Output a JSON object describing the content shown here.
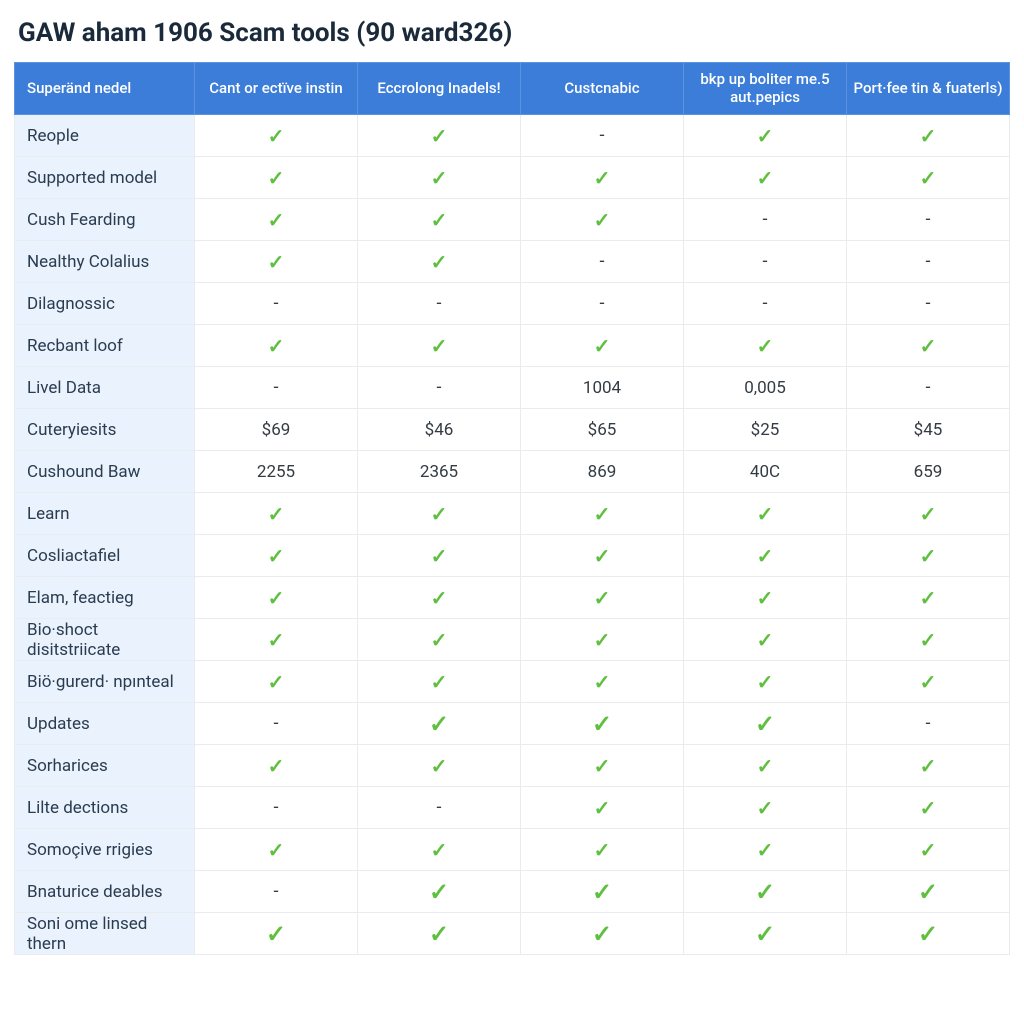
{
  "title": "GAW aham 1906 Scam tools (90 ward326)",
  "table": {
    "columns": [
      "Superänd nedel",
      "Cant or ectïve instin",
      "Eccrolong Inadels!",
      "Custcnabic",
      "bkp up boliter me.5 aut.pepics",
      "Port·fee tin & fuaterls)"
    ],
    "rows": [
      {
        "label": "Reople",
        "cells": [
          "check",
          "check",
          "dash",
          "check",
          "check"
        ]
      },
      {
        "label": "Supported model",
        "cells": [
          "check",
          "check",
          "check",
          "check",
          "check"
        ]
      },
      {
        "label": "Cush Fearding",
        "cells": [
          "check",
          "check",
          "check",
          "dash",
          "dash"
        ]
      },
      {
        "label": "Nealthy Colalius",
        "cells": [
          "check",
          "check",
          "dash",
          "dash",
          "dash"
        ]
      },
      {
        "label": "Dilagnossic",
        "cells": [
          "dash",
          "dash",
          "dash",
          "dash",
          "dash"
        ]
      },
      {
        "label": "Recbant loof",
        "cells": [
          "check",
          "check",
          "check",
          "check",
          "check"
        ]
      },
      {
        "label": "Livel Data",
        "cells": [
          "dash",
          "dash",
          "1004",
          "0,005",
          "dash"
        ]
      },
      {
        "label": "Cuteryiesits",
        "cells": [
          "$69",
          "$46",
          "$65",
          "$25",
          "$45"
        ]
      },
      {
        "label": "Cushound Baw",
        "cells": [
          "2255",
          "2365",
          "869",
          "40C",
          "659"
        ]
      },
      {
        "label": "Learn",
        "cells": [
          "check",
          "check",
          "check",
          "check",
          "check"
        ]
      },
      {
        "label": "Cosliactafiel",
        "cells": [
          "check",
          "check",
          "check",
          "check",
          "check"
        ]
      },
      {
        "label": "Elam, feactieg",
        "cells": [
          "check",
          "check",
          "check",
          "check",
          "check"
        ]
      },
      {
        "label": "Bio·shoct disitstriicate",
        "cells": [
          "check",
          "check",
          "check",
          "check",
          "check"
        ]
      },
      {
        "label": "Biö·gurerd· npınteal",
        "cells": [
          "check",
          "check",
          "check",
          "check",
          "check"
        ]
      },
      {
        "label": "Updates",
        "cells": [
          "dash",
          "check-lg",
          "check-lg",
          "check-lg",
          "dash"
        ]
      },
      {
        "label": "Sorharices",
        "cells": [
          "check",
          "check",
          "check",
          "check",
          "check"
        ]
      },
      {
        "label": "Lilte dections",
        "cells": [
          "dash",
          "dash",
          "check",
          "check",
          "check"
        ]
      },
      {
        "label": "Somoçive rrigies",
        "cells": [
          "check",
          "check",
          "check",
          "check",
          "check"
        ]
      },
      {
        "label": "Bnaturice deables",
        "cells": [
          "dash",
          "check-lg",
          "check-lg",
          "check-lg",
          "check-lg"
        ]
      },
      {
        "label": "Soni ome linsed thern",
        "cells": [
          "check-lg",
          "check-lg",
          "check-lg",
          "check-lg",
          "check-lg"
        ]
      }
    ]
  },
  "styling": {
    "check_color": "#5fbf3f",
    "header_bg": "#3b7dd8",
    "header_text": "#ffffff",
    "label_col_bg": "#eaf2fd",
    "border_color": "#e8ecef",
    "title_color": "#1a2a3a",
    "title_fontsize": 26,
    "cell_fontsize": 17,
    "header_fontsize": 15,
    "check_glyph": "✓",
    "dash_glyph": "-"
  }
}
